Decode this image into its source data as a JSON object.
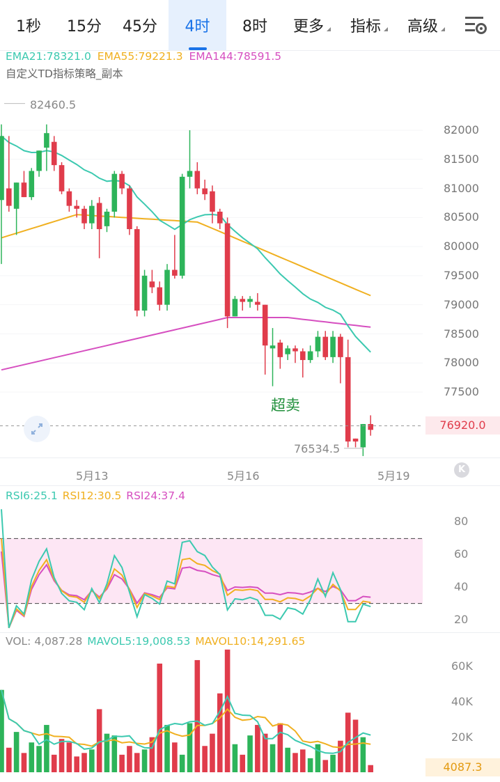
{
  "tabs": [
    {
      "label": "1秒",
      "active": false,
      "dropdown": false
    },
    {
      "label": "15分",
      "active": false,
      "dropdown": false
    },
    {
      "label": "45分",
      "active": false,
      "dropdown": false
    },
    {
      "label": "4时",
      "active": true,
      "dropdown": false
    },
    {
      "label": "8时",
      "active": false,
      "dropdown": false
    },
    {
      "label": "更多",
      "active": false,
      "dropdown": true
    },
    {
      "label": "指标",
      "active": false,
      "dropdown": true
    },
    {
      "label": "高级",
      "active": false,
      "dropdown": true
    }
  ],
  "settings_icon": "chart-settings-icon",
  "ema": {
    "ema21": "EMA21:78321.0",
    "ema55": "EMA55:79221.3",
    "ema144": "EMA144:78591.5"
  },
  "strategy": "自定义TD指标策略_副本",
  "price_axis": [
    "82000",
    "81500",
    "81000",
    "80500",
    "80000",
    "79500",
    "79000",
    "78500",
    "78000",
    "77500"
  ],
  "high_label": "82460.5",
  "low_label": "76534.5",
  "current_price": "76920.0",
  "annotation": "超卖",
  "dates": [
    "5月13",
    "5月16",
    "5月19"
  ],
  "rsi": {
    "rsi6": "RSI6:25.1",
    "rsi12": "RSI12:30.5",
    "rsi24": "RSI24:37.4",
    "axis": [
      "80",
      "60",
      "40",
      "20"
    ]
  },
  "vol": {
    "vol": "VOL: 4,087.28",
    "mavol5": "MAVOL5:19,008.53",
    "mavol10": "MAVOL10:14,291.65",
    "axis": [
      "60K",
      "40K",
      "20K"
    ],
    "current": "4087.3"
  },
  "colors": {
    "up": "#2db45a",
    "down": "#e03c4b",
    "ema21": "#3cc9b0",
    "ema55": "#f0b020",
    "ema144": "#d64fc0",
    "accent": "#1a73e8"
  },
  "chart_data": [
    {
      "type": "candlestick",
      "title": "",
      "ylim": [
        76400,
        82700
      ],
      "x_labels": [
        "5月13",
        "5月16",
        "5月19"
      ],
      "candles": [
        [
          80800,
          82100,
          79700,
          81900
        ],
        [
          81000,
          81900,
          80600,
          80700
        ],
        [
          80650,
          81100,
          80200,
          81100
        ],
        [
          81100,
          81300,
          80850,
          80850
        ],
        [
          80850,
          81350,
          80800,
          81300
        ],
        [
          81300,
          81650,
          81200,
          81650
        ],
        [
          81700,
          82100,
          81300,
          81950
        ],
        [
          81800,
          81900,
          81300,
          81400
        ],
        [
          81400,
          81450,
          80900,
          80950
        ],
        [
          80950,
          81000,
          80600,
          80700
        ],
        [
          80700,
          80800,
          80500,
          80650
        ],
        [
          80650,
          80700,
          80300,
          80400
        ],
        [
          80400,
          80800,
          80300,
          80700
        ],
        [
          80750,
          80850,
          79800,
          80300
        ],
        [
          80350,
          80650,
          80250,
          80600
        ],
        [
          80600,
          81300,
          80500,
          81250
        ],
        [
          81250,
          81300,
          80900,
          81000
        ],
        [
          81000,
          81050,
          80200,
          80300
        ],
        [
          80300,
          80350,
          78800,
          78900
        ],
        [
          78900,
          79600,
          78800,
          79500
        ],
        [
          79400,
          79600,
          79200,
          79300
        ],
        [
          79300,
          79400,
          78900,
          79000
        ],
        [
          79000,
          79700,
          78900,
          79600
        ],
        [
          79600,
          80200,
          79450,
          79500
        ],
        [
          79500,
          81250,
          79450,
          81200
        ],
        [
          81200,
          82000,
          81000,
          81300
        ],
        [
          81300,
          81450,
          80900,
          81000
        ],
        [
          81000,
          81150,
          80800,
          80900
        ],
        [
          80950,
          81050,
          80400,
          80600
        ],
        [
          80600,
          80650,
          80300,
          80400
        ],
        [
          80400,
          80500,
          78600,
          78800
        ],
        [
          78800,
          79150,
          78800,
          79100
        ],
        [
          79100,
          79150,
          78900,
          79050
        ],
        [
          79050,
          79150,
          78950,
          79100
        ],
        [
          79050,
          79200,
          78900,
          79000
        ],
        [
          79000,
          79000,
          77800,
          78300
        ],
        [
          78250,
          78600,
          77600,
          78300
        ],
        [
          78350,
          78400,
          77900,
          78100
        ],
        [
          78150,
          78300,
          78050,
          78250
        ],
        [
          78250,
          78300,
          78000,
          78200
        ],
        [
          78200,
          78250,
          77750,
          78050
        ],
        [
          78050,
          78300,
          78000,
          78200
        ],
        [
          78200,
          78550,
          78100,
          78450
        ],
        [
          78450,
          78550,
          78050,
          78100
        ],
        [
          78100,
          78550,
          78000,
          78450
        ],
        [
          78450,
          78500,
          77650,
          78100
        ],
        [
          78100,
          78400,
          76550,
          76650
        ],
        [
          76700,
          76700,
          76550,
          76650
        ],
        [
          76550,
          76950,
          76400,
          76950
        ],
        [
          76950,
          77100,
          76750,
          76850
        ]
      ]
    },
    {
      "type": "line",
      "title": "RSI",
      "ylim": [
        15,
        90
      ],
      "reference_lines": [
        70,
        30
      ]
    },
    {
      "type": "bar",
      "title": "VOL",
      "ylim": [
        0,
        70000
      ]
    }
  ]
}
